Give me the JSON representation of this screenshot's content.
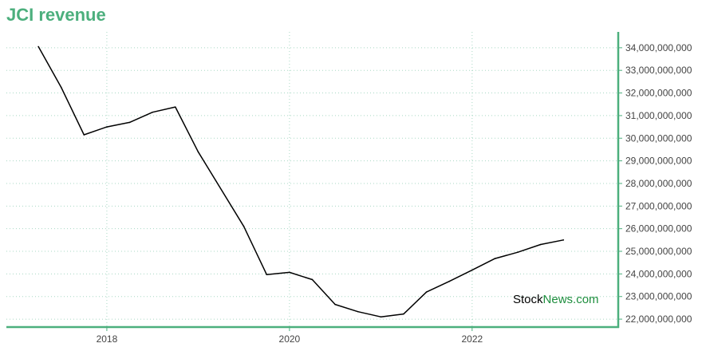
{
  "chart_data": {
    "type": "line",
    "title": "JCI revenue",
    "xlabel": "",
    "ylabel": "",
    "ylim": [
      21650000000,
      34700000000
    ],
    "xlim": [
      2016.9,
      2023.6
    ],
    "grid": true,
    "x_ticks": [
      {
        "value": 2018,
        "label": "2018"
      },
      {
        "value": 2020,
        "label": "2020"
      },
      {
        "value": 2022,
        "label": "2022"
      }
    ],
    "y_ticks": [
      {
        "value": 22000000000,
        "label": "22,000,000,000"
      },
      {
        "value": 23000000000,
        "label": "23,000,000,000"
      },
      {
        "value": 24000000000,
        "label": "24,000,000,000"
      },
      {
        "value": 25000000000,
        "label": "25,000,000,000"
      },
      {
        "value": 26000000000,
        "label": "26,000,000,000"
      },
      {
        "value": 27000000000,
        "label": "27,000,000,000"
      },
      {
        "value": 28000000000,
        "label": "28,000,000,000"
      },
      {
        "value": 29000000000,
        "label": "29,000,000,000"
      },
      {
        "value": 30000000000,
        "label": "30,000,000,000"
      },
      {
        "value": 31000000000,
        "label": "31,000,000,000"
      },
      {
        "value": 32000000000,
        "label": "32,000,000,000"
      },
      {
        "value": 33000000000,
        "label": "33,000,000,000"
      },
      {
        "value": 34000000000,
        "label": "34,000,000,000"
      }
    ],
    "series": [
      {
        "color": "#000000",
        "points": [
          {
            "x": 2017.25,
            "y": 34050000000
          },
          {
            "x": 2017.5,
            "y": 32250000000
          },
          {
            "x": 2017.75,
            "y": 30150000000
          },
          {
            "x": 2018.0,
            "y": 30500000000
          },
          {
            "x": 2018.25,
            "y": 30700000000
          },
          {
            "x": 2018.5,
            "y": 31150000000
          },
          {
            "x": 2018.75,
            "y": 31380000000
          },
          {
            "x": 2019.0,
            "y": 29400000000
          },
          {
            "x": 2019.5,
            "y": 26100000000
          },
          {
            "x": 2019.75,
            "y": 23970000000
          },
          {
            "x": 2020.0,
            "y": 24070000000
          },
          {
            "x": 2020.25,
            "y": 23750000000
          },
          {
            "x": 2020.5,
            "y": 22650000000
          },
          {
            "x": 2020.75,
            "y": 22330000000
          },
          {
            "x": 2021.0,
            "y": 22100000000
          },
          {
            "x": 2021.25,
            "y": 22230000000
          },
          {
            "x": 2021.5,
            "y": 23200000000
          },
          {
            "x": 2021.75,
            "y": 23670000000
          },
          {
            "x": 2022.0,
            "y": 24170000000
          },
          {
            "x": 2022.25,
            "y": 24680000000
          },
          {
            "x": 2022.5,
            "y": 24960000000
          },
          {
            "x": 2022.75,
            "y": 25300000000
          },
          {
            "x": 2023.0,
            "y": 25500000000
          }
        ]
      }
    ],
    "colors": {
      "accent": "#4caf7d",
      "grid": "#a8d8c4",
      "line": "#000000",
      "watermark_dark": "#000000",
      "watermark_green": "#1e8e3e"
    }
  },
  "watermark": {
    "part1": "Stock",
    "part2": "News",
    "part3": ".com"
  }
}
